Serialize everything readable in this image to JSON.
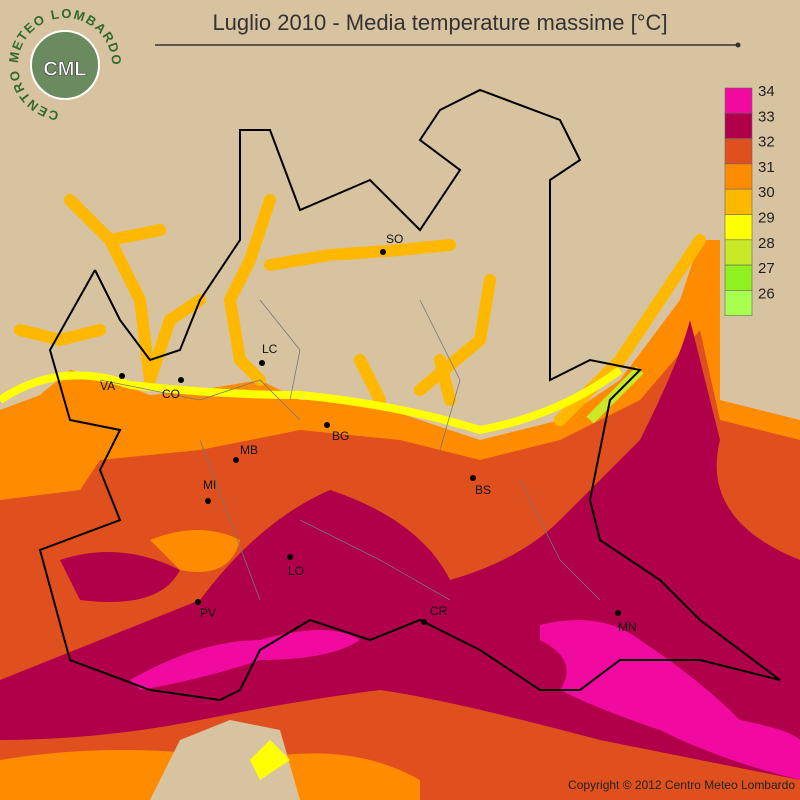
{
  "header": {
    "title": "Luglio 2010 - Media temperature massime [°C]"
  },
  "logo": {
    "short": "CML",
    "ring": "CENTRO METEO LOMBARDO"
  },
  "legend": {
    "entries": [
      {
        "label": "34",
        "color": "#f00aa0"
      },
      {
        "label": "33",
        "color": "#b0004a"
      },
      {
        "label": "32",
        "color": "#e0501e"
      },
      {
        "label": "31",
        "color": "#ff8c00"
      },
      {
        "label": "30",
        "color": "#ffb800"
      },
      {
        "label": "29",
        "color": "#ffff00"
      },
      {
        "label": "28",
        "color": "#c8e828"
      },
      {
        "label": "27",
        "color": "#90f020"
      },
      {
        "label": "26",
        "color": "#a8ff50"
      }
    ]
  },
  "cities": [
    "SO",
    "LC",
    "VA",
    "CO",
    "BG",
    "MB",
    "BS",
    "MI",
    "LO",
    "PV",
    "CR",
    "MN"
  ],
  "footer": {
    "copyright": "Copyright © 2012 Centro Meteo Lombardo"
  }
}
